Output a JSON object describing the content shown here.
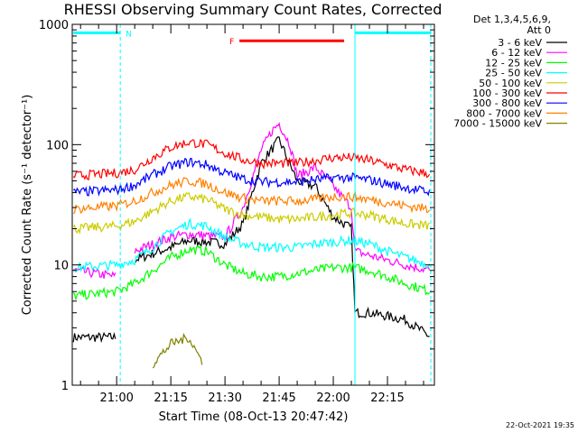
{
  "chart_data": {
    "type": "line",
    "title": "RHESSI Observing Summary Count Rates, Corrected",
    "xlabel": "Start Time (08-Oct-13 20:47:42)",
    "ylabel": "Corrected Count Rate (s⁻¹ detector⁻¹)",
    "y_scale": "log",
    "ylim": [
      1,
      1000
    ],
    "y_ticks": [
      1,
      10,
      100,
      1000
    ],
    "y_tick_labels": [
      "1",
      "10",
      "100",
      "1000"
    ],
    "xlim": [
      "20:47:42",
      "22:28:00"
    ],
    "x_ticks": [
      "21:00",
      "21:15",
      "21:30",
      "21:45",
      "22:00",
      "22:15"
    ],
    "x_tick_labels": [
      "21:00",
      "21:15",
      "21:30",
      "21:45",
      "22:00",
      "22:15"
    ],
    "grid": false,
    "legend_title": [
      "Det 1,3,4,5,6,9,",
      "Att 0"
    ],
    "legend_placement": "right",
    "series": [
      {
        "name": "3 - 6 keV",
        "color": "#000000",
        "x": [
          "20:48",
          "21:00",
          "21:01",
          "21:05",
          "21:15",
          "21:20",
          "21:30",
          "21:35",
          "21:40",
          "21:45",
          "21:50",
          "21:55",
          "22:00",
          "22:05",
          "22:06",
          "22:10",
          "22:20",
          "22:27"
        ],
        "values": [
          2.5,
          2.5,
          null,
          11,
          14,
          16,
          15,
          22,
          70,
          110,
          50,
          45,
          25,
          20,
          4,
          4,
          3.5,
          2.5
        ]
      },
      {
        "name": "6 - 12 keV",
        "color": "#ff00ff",
        "x": [
          "20:48",
          "21:00",
          "21:01",
          "21:05",
          "21:15",
          "21:20",
          "21:30",
          "21:35",
          "21:40",
          "21:43",
          "21:45",
          "21:48",
          "21:50",
          "21:53",
          "21:55",
          "22:00",
          "22:05",
          "22:06",
          "22:10",
          "22:20",
          "22:27"
        ],
        "values": [
          9,
          8,
          null,
          13,
          17,
          18,
          17,
          30,
          90,
          130,
          150,
          100,
          55,
          60,
          65,
          45,
          30,
          13,
          12,
          10,
          9
        ]
      },
      {
        "name": "12 - 25 keV",
        "color": "#00ff00",
        "x": [
          "20:48",
          "21:00",
          "21:05",
          "21:10",
          "21:15",
          "21:20",
          "21:25",
          "21:30",
          "21:35",
          "21:40",
          "21:45",
          "21:50",
          "21:55",
          "22:00",
          "22:05",
          "22:10",
          "22:15",
          "22:20",
          "22:27"
        ],
        "values": [
          5.5,
          6,
          7,
          9,
          11.5,
          13.5,
          13,
          10,
          8.5,
          8,
          8,
          8.5,
          9,
          9.5,
          9.5,
          9,
          8,
          7,
          6
        ]
      },
      {
        "name": "25 - 50 keV",
        "color": "#00ffff",
        "x": [
          "20:48",
          "21:00",
          "21:05",
          "21:10",
          "21:15",
          "21:20",
          "21:25",
          "21:30",
          "21:35",
          "21:40",
          "21:45",
          "21:50",
          "21:55",
          "22:00",
          "22:05",
          "22:10",
          "22:15",
          "22:20",
          "22:27"
        ],
        "values": [
          9.5,
          10,
          11,
          14,
          19,
          22,
          21,
          17,
          15,
          14,
          14,
          14,
          15,
          15.5,
          16,
          15,
          13,
          11.5,
          10
        ]
      },
      {
        "name": "50 - 100 keV",
        "color": "#cccc00",
        "x": [
          "20:48",
          "21:00",
          "21:05",
          "21:10",
          "21:15",
          "21:20",
          "21:25",
          "21:30",
          "21:35",
          "21:40",
          "21:45",
          "21:50",
          "21:55",
          "22:00",
          "22:05",
          "22:10",
          "22:15",
          "22:20",
          "22:27"
        ],
        "values": [
          20,
          21,
          23,
          28,
          34,
          37,
          35,
          29,
          26,
          25,
          24,
          24,
          25,
          26,
          27,
          26,
          24,
          22,
          21
        ]
      },
      {
        "name": "100 - 300 keV",
        "color": "#ff0000",
        "x": [
          "20:48",
          "21:00",
          "21:05",
          "21:10",
          "21:15",
          "21:20",
          "21:25",
          "21:30",
          "21:35",
          "21:40",
          "21:45",
          "21:50",
          "21:55",
          "22:00",
          "22:05",
          "22:10",
          "22:15",
          "22:20",
          "22:27"
        ],
        "values": [
          55,
          58,
          62,
          78,
          95,
          105,
          100,
          85,
          75,
          70,
          70,
          70,
          74,
          78,
          78,
          74,
          68,
          62,
          57
        ]
      },
      {
        "name": "300 - 800 keV",
        "color": "#0000ff",
        "x": [
          "20:48",
          "21:00",
          "21:05",
          "21:10",
          "21:15",
          "21:20",
          "21:25",
          "21:30",
          "21:35",
          "21:40",
          "21:45",
          "21:50",
          "21:55",
          "22:00",
          "22:05",
          "22:10",
          "22:15",
          "22:20",
          "22:27"
        ],
        "values": [
          40,
          42,
          46,
          56,
          66,
          72,
          68,
          58,
          52,
          49,
          49,
          49,
          51,
          53,
          53,
          51,
          47,
          44,
          40
        ]
      },
      {
        "name": "800 - 7000 keV",
        "color": "#ff8000",
        "x": [
          "20:48",
          "21:00",
          "21:05",
          "21:10",
          "21:15",
          "21:20",
          "21:25",
          "21:30",
          "21:35",
          "21:40",
          "21:45",
          "21:50",
          "21:55",
          "22:00",
          "22:05",
          "22:10",
          "22:15",
          "22:20",
          "22:27"
        ],
        "values": [
          29,
          31,
          34,
          40,
          46,
          50,
          47,
          40,
          36,
          34,
          34,
          34,
          35,
          37,
          37,
          35,
          33,
          31,
          29
        ]
      },
      {
        "name": "7000 - 15000 keV",
        "color": "#808000",
        "x": [
          "21:10",
          "21:15",
          "21:20",
          "21:24"
        ],
        "values": [
          1.5,
          2.2,
          2.5,
          1.5
        ]
      }
    ],
    "annotations": [
      {
        "text": "N",
        "color": "#00ffff",
        "x_start": "20:48",
        "x_end": "21:01",
        "level": 850
      },
      {
        "text": "",
        "color": "#00ffff",
        "x_start": "22:06",
        "x_end": "22:27",
        "level": 850
      },
      {
        "text": "F",
        "color": "#ff0000",
        "x_start": "21:34",
        "x_end": "22:03",
        "level": 730
      }
    ],
    "vertical_markers": [
      {
        "x": "21:01",
        "style": "dashed",
        "color": "#00ffff"
      },
      {
        "x": "22:06",
        "style": "solid",
        "color": "#00ffff"
      },
      {
        "x": "22:27",
        "style": "dashed",
        "color": "#00ffff"
      }
    ],
    "timestamp": "22-Oct-2021 19:35"
  }
}
